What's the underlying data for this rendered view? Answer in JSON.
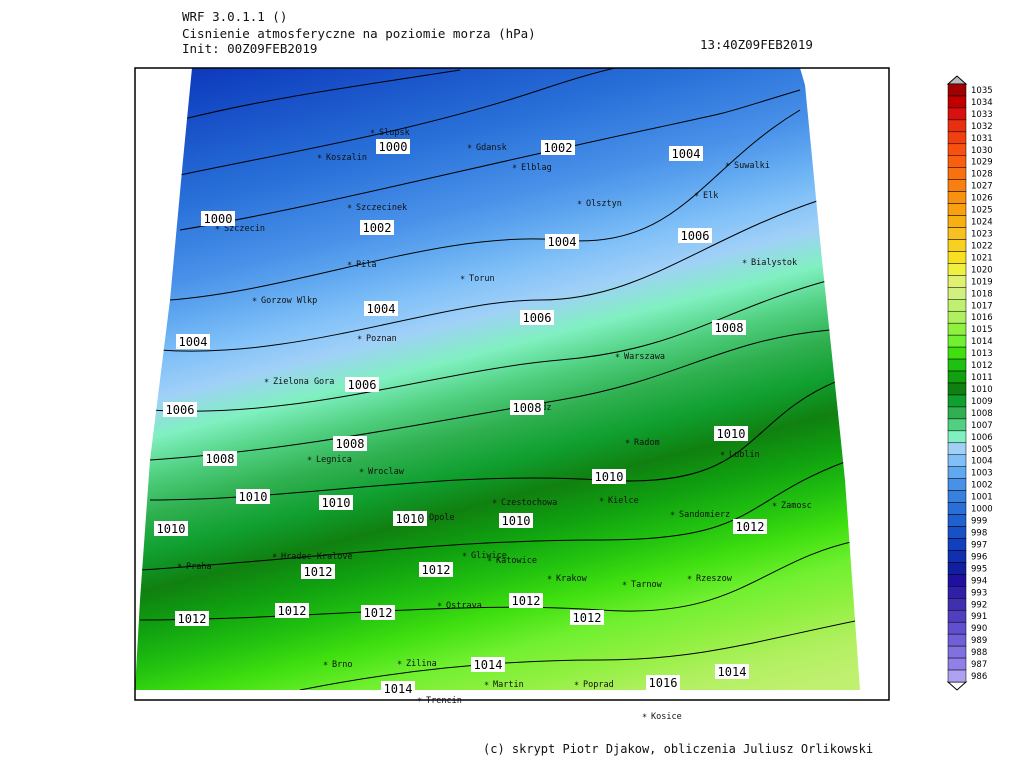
{
  "header": {
    "model": "WRF 3.0.1.1 ()",
    "title": "Cisnienie atmosferyczne na poziomie morza (hPa)",
    "init": "Init: 00Z09FEB2019",
    "valid": "13:40Z09FEB2019"
  },
  "footer": "(c) skrypt Piotr Djakow, obliczenia Juliusz Orlikowski",
  "cities": [
    "Slupsk",
    "Koszalin",
    "Gdansk",
    "Elblag",
    "Suwalki",
    "Szczecinek",
    "Olsztyn",
    "Elk",
    "Szczecin",
    "Bialystok",
    "Pila",
    "Torun",
    "Gorzow Wlkp",
    "Poznan",
    "Warszawa",
    "Zielona Gora",
    "Lodz",
    "Radom",
    "Lublin",
    "Legnica",
    "Wroclaw",
    "Opole",
    "Czestochowa",
    "Kielce",
    "Sandomierz",
    "Zamosc",
    "Hradec Kralove",
    "Praha",
    "Gliwice",
    "Katowice",
    "Krakow",
    "Tarnow",
    "Rzeszow",
    "Ostrava",
    "Brno",
    "Zilina",
    "Martin",
    "Poprad",
    "Trencin",
    "Kosice"
  ],
  "isobar_labels": [
    "1000",
    "1002",
    "1004",
    "1000",
    "1002",
    "1004",
    "1006",
    "1004",
    "1006",
    "1008",
    "1004",
    "1006",
    "1006",
    "1008",
    "1008",
    "1010",
    "1008",
    "1010",
    "1010",
    "1010",
    "1010",
    "1010",
    "1010",
    "1012",
    "1012",
    "1012",
    "1012",
    "1012",
    "1012",
    "1012",
    "1012",
    "1014",
    "1014",
    "1016",
    "1014"
  ],
  "colorbar": {
    "labels": [
      "1035",
      "1034",
      "1033",
      "1032",
      "1031",
      "1030",
      "1029",
      "1028",
      "1027",
      "1026",
      "1025",
      "1024",
      "1023",
      "1022",
      "1021",
      "1020",
      "1019",
      "1018",
      "1017",
      "1016",
      "1015",
      "1014",
      "1013",
      "1012",
      "1011",
      "1010",
      "1009",
      "1008",
      "1007",
      "1006",
      "1005",
      "1004",
      "1003",
      "1002",
      "1001",
      "1000",
      "999",
      "998",
      "997",
      "996",
      "995",
      "994",
      "993",
      "992",
      "991",
      "990",
      "989",
      "988",
      "987",
      "986"
    ],
    "colors": [
      "#a00000",
      "#c00000",
      "#d81010",
      "#e83010",
      "#f04010",
      "#f85010",
      "#f86010",
      "#f87010",
      "#f88010",
      "#f89010",
      "#f8a010",
      "#f8b010",
      "#f8c020",
      "#f8d020",
      "#f8e020",
      "#f0f040",
      "#e0f070",
      "#d0f080",
      "#c0f070",
      "#b0f060",
      "#90f040",
      "#70f030",
      "#40e010",
      "#20c010",
      "#10a010",
      "#108010",
      "#10a030",
      "#30b050",
      "#50d080",
      "#80f0c0",
      "#a0d0f8",
      "#80c0f8",
      "#60a8f0",
      "#4890e8",
      "#3880e0",
      "#2870d8",
      "#2060d0",
      "#1850c8",
      "#1040c0",
      "#1030b0",
      "#1020a0",
      "#2010a0",
      "#3020a8",
      "#4030b0",
      "#5040c0",
      "#6050d0",
      "#7060d8",
      "#8070e0",
      "#9080e8",
      "#b0a0f0"
    ]
  }
}
